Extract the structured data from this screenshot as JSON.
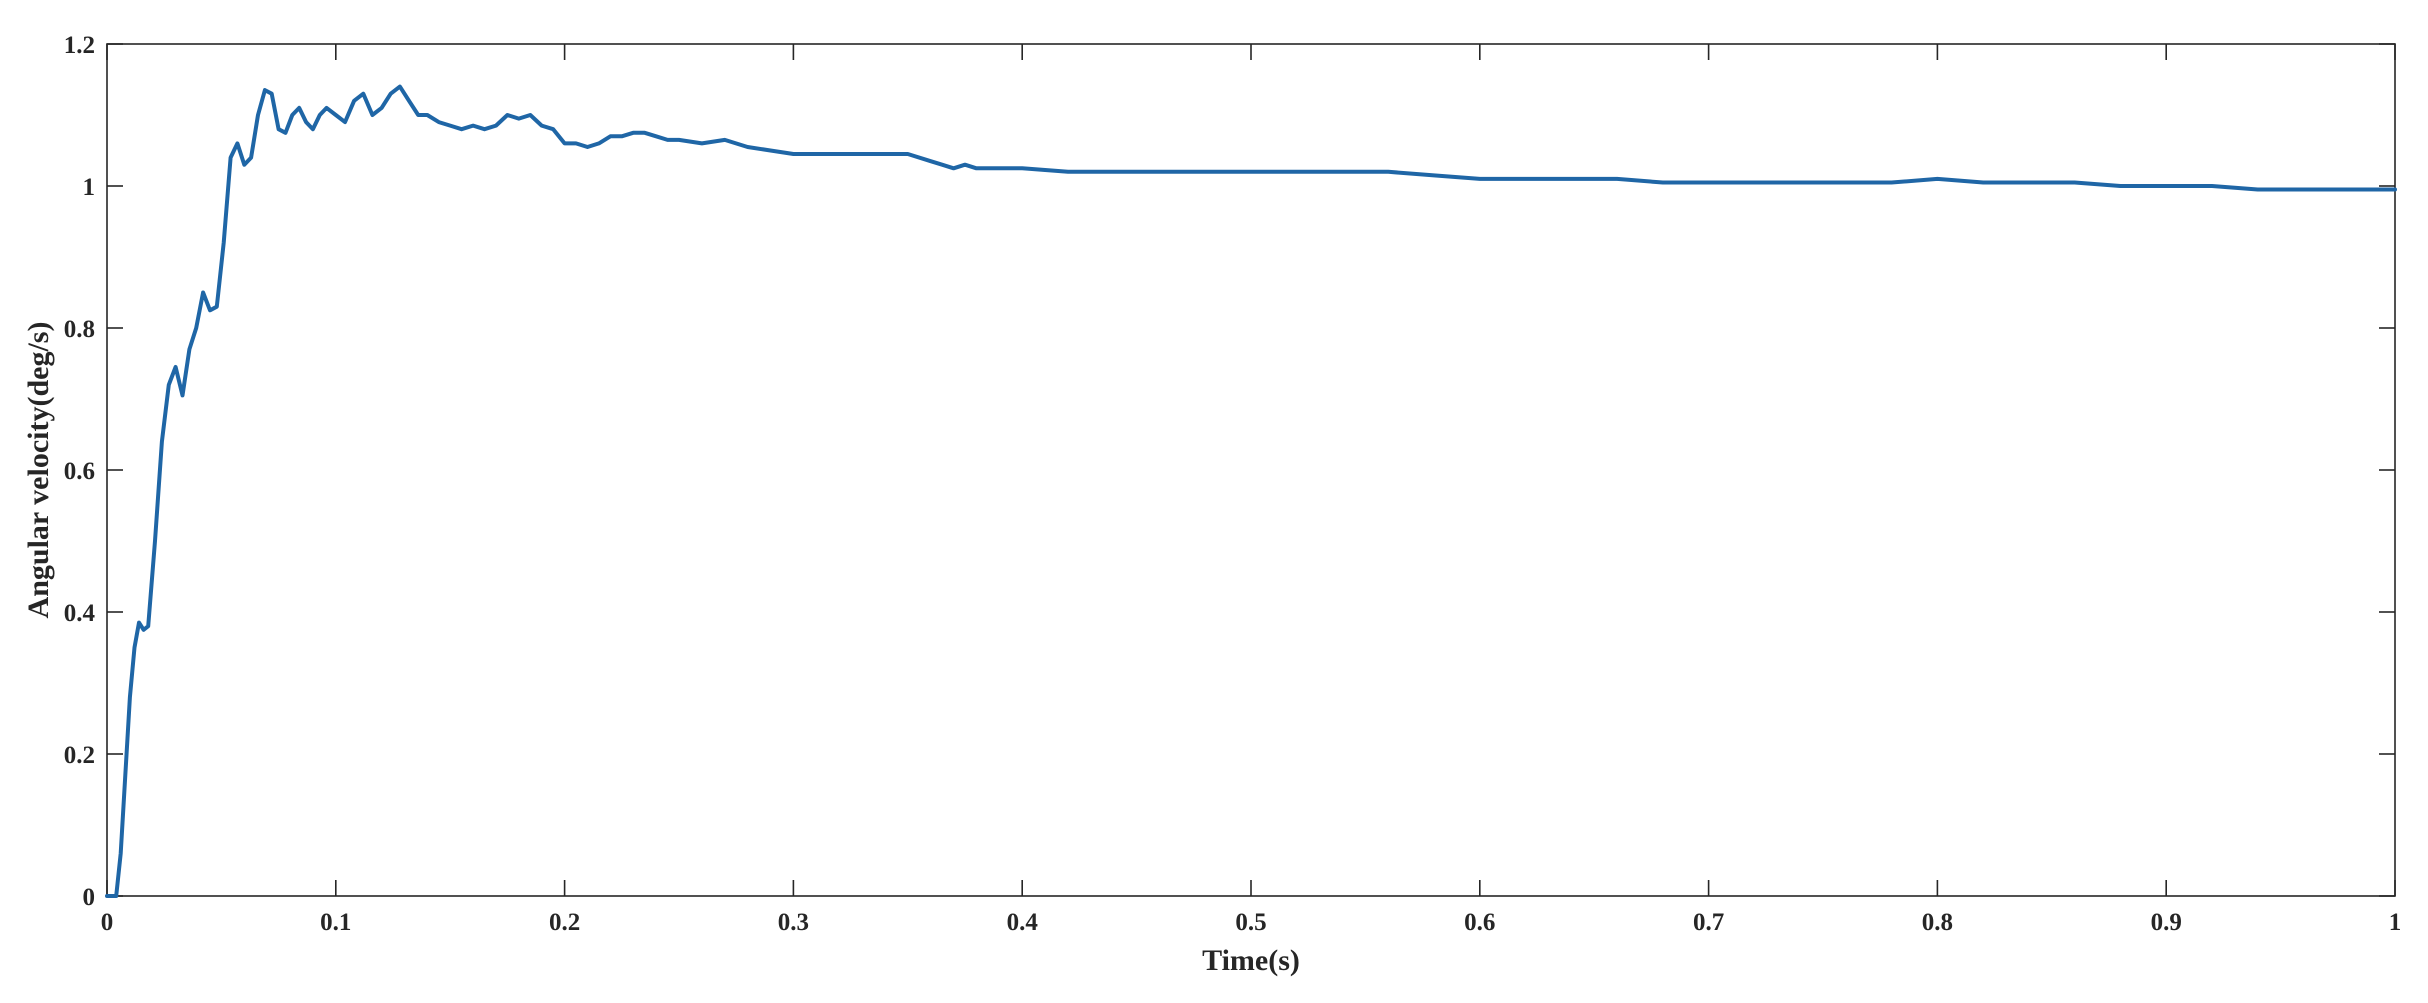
{
  "chart_data": {
    "type": "line",
    "title": "",
    "xlabel": "Time(s)",
    "ylabel": "Angular velocity(deg/s)",
    "xlim": [
      0,
      1
    ],
    "ylim": [
      0,
      1.2
    ],
    "xticks": [
      0,
      0.1,
      0.2,
      0.3,
      0.4,
      0.5,
      0.6,
      0.7,
      0.8,
      0.9,
      1
    ],
    "xtick_labels": [
      "0",
      "0.1",
      "0.2",
      "0.3",
      "0.4",
      "0.5",
      "0.6",
      "0.7",
      "0.8",
      "0.9",
      "1"
    ],
    "yticks": [
      0,
      0.2,
      0.4,
      0.6,
      0.8,
      1,
      1.2
    ],
    "ytick_labels": [
      "0",
      "0.2",
      "0.4",
      "0.6",
      "0.8",
      "1",
      "1.2"
    ],
    "grid": false,
    "legend": "none",
    "colors": {
      "series": "#1f66a6",
      "axis": "#262626"
    },
    "series": [
      {
        "color": "#1f66a6",
        "x": [
          0,
          0.004,
          0.006,
          0.008,
          0.01,
          0.012,
          0.014,
          0.016,
          0.018,
          0.021,
          0.024,
          0.027,
          0.03,
          0.033,
          0.036,
          0.039,
          0.042,
          0.045,
          0.048,
          0.051,
          0.054,
          0.057,
          0.06,
          0.063,
          0.066,
          0.069,
          0.072,
          0.075,
          0.078,
          0.081,
          0.084,
          0.087,
          0.09,
          0.093,
          0.096,
          0.1,
          0.104,
          0.108,
          0.112,
          0.116,
          0.12,
          0.124,
          0.128,
          0.132,
          0.136,
          0.14,
          0.145,
          0.15,
          0.155,
          0.16,
          0.165,
          0.17,
          0.175,
          0.18,
          0.185,
          0.19,
          0.195,
          0.2,
          0.205,
          0.21,
          0.215,
          0.22,
          0.225,
          0.23,
          0.235,
          0.24,
          0.245,
          0.25,
          0.26,
          0.27,
          0.28,
          0.29,
          0.3,
          0.31,
          0.32,
          0.33,
          0.34,
          0.35,
          0.36,
          0.365,
          0.37,
          0.375,
          0.38,
          0.39,
          0.4,
          0.42,
          0.44,
          0.46,
          0.48,
          0.5,
          0.52,
          0.54,
          0.56,
          0.58,
          0.6,
          0.62,
          0.64,
          0.66,
          0.68,
          0.7,
          0.72,
          0.74,
          0.76,
          0.78,
          0.8,
          0.82,
          0.84,
          0.86,
          0.88,
          0.9,
          0.92,
          0.94,
          0.96,
          0.98,
          1.0
        ],
        "y": [
          0,
          0.0,
          0.06,
          0.17,
          0.28,
          0.35,
          0.385,
          0.375,
          0.38,
          0.5,
          0.64,
          0.72,
          0.745,
          0.705,
          0.77,
          0.8,
          0.85,
          0.825,
          0.83,
          0.92,
          1.04,
          1.06,
          1.03,
          1.04,
          1.1,
          1.135,
          1.13,
          1.08,
          1.075,
          1.1,
          1.11,
          1.09,
          1.08,
          1.1,
          1.11,
          1.1,
          1.09,
          1.12,
          1.13,
          1.1,
          1.11,
          1.13,
          1.14,
          1.12,
          1.1,
          1.1,
          1.09,
          1.085,
          1.08,
          1.085,
          1.08,
          1.085,
          1.1,
          1.095,
          1.1,
          1.085,
          1.08,
          1.06,
          1.06,
          1.055,
          1.06,
          1.07,
          1.07,
          1.075,
          1.075,
          1.07,
          1.065,
          1.065,
          1.06,
          1.065,
          1.055,
          1.05,
          1.045,
          1.045,
          1.045,
          1.045,
          1.045,
          1.045,
          1.035,
          1.03,
          1.025,
          1.03,
          1.025,
          1.025,
          1.025,
          1.02,
          1.02,
          1.02,
          1.02,
          1.02,
          1.02,
          1.02,
          1.02,
          1.015,
          1.01,
          1.01,
          1.01,
          1.01,
          1.005,
          1.005,
          1.005,
          1.005,
          1.005,
          1.005,
          1.01,
          1.005,
          1.005,
          1.005,
          1.0,
          1.0,
          1.0,
          0.995,
          0.995,
          0.995,
          0.995
        ]
      }
    ]
  }
}
